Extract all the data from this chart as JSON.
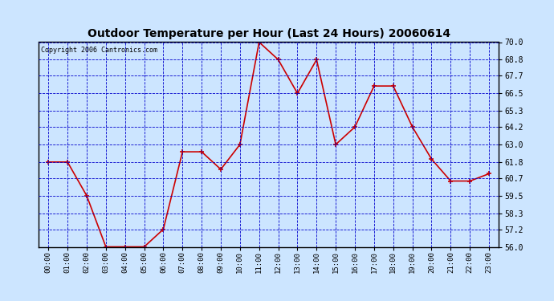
{
  "title": "Outdoor Temperature per Hour (Last 24 Hours) 20060614",
  "copyright_text": "Copyright 2006 Cantronics.com",
  "hours": [
    "00:00",
    "01:00",
    "02:00",
    "03:00",
    "04:00",
    "05:00",
    "06:00",
    "07:00",
    "08:00",
    "09:00",
    "10:00",
    "11:00",
    "12:00",
    "13:00",
    "14:00",
    "15:00",
    "16:00",
    "17:00",
    "18:00",
    "19:00",
    "20:00",
    "21:00",
    "22:00",
    "23:00"
  ],
  "temperatures": [
    61.8,
    61.8,
    59.5,
    56.0,
    56.0,
    56.0,
    57.2,
    62.5,
    62.5,
    61.3,
    63.0,
    70.0,
    68.8,
    66.5,
    68.8,
    63.0,
    64.2,
    67.0,
    67.0,
    64.2,
    62.0,
    60.5,
    60.5,
    61.0
  ],
  "line_color": "#cc0000",
  "marker_color": "#cc0000",
  "bg_color": "#cce5ff",
  "plot_bg_color": "#cce5ff",
  "grid_color": "#0000cc",
  "border_color": "#000000",
  "title_color": "#000000",
  "ylim_min": 56.0,
  "ylim_max": 70.0,
  "ytick_labels": [
    "56.0",
    "57.2",
    "58.3",
    "59.5",
    "60.7",
    "61.8",
    "63.0",
    "64.2",
    "65.3",
    "66.5",
    "67.7",
    "68.8",
    "70.0"
  ],
  "ytick_values": [
    56.0,
    57.2,
    58.3,
    59.5,
    60.7,
    61.8,
    63.0,
    64.2,
    65.3,
    66.5,
    67.7,
    68.8,
    70.0
  ],
  "figwidth": 6.9,
  "figheight": 3.75,
  "dpi": 100
}
